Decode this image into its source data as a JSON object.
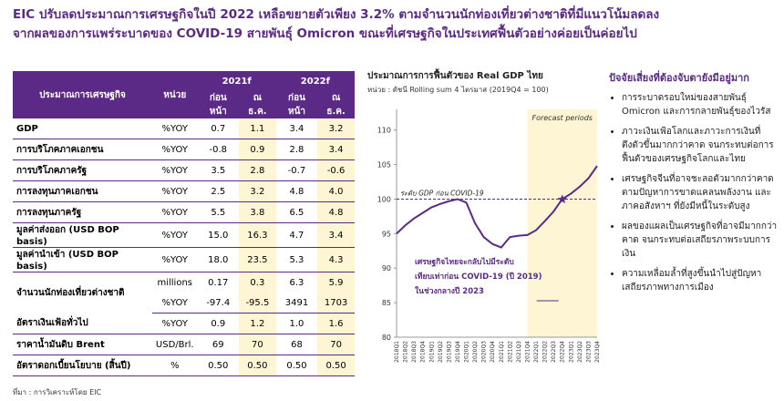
{
  "header": {
    "title_lines": [
      "EIC ปรับลดประมาณการเศรษฐกิจในปี 2022 เหลือขยายตัวเพียง 3.2% ตามจำนวนนักท่องเที่ยวต่างชาติที่มีแนวโน้มลดลง",
      "จากผลของการแพร่ระบาดของ COVID-19 สายพันธุ์ Omicron ขณะที่เศรษฐกิจในประเทศฟื้นตัวอย่างค่อยเป็นค่อยไป"
    ]
  },
  "table": {
    "head": [
      "ประมาณการเศรษฐกิจ",
      "หน่วย",
      "2021f",
      "2022f"
    ],
    "subhead": [
      "ก่อนหน้า",
      "ณ ธ.ค.",
      "ก่อนหน้า",
      "ณ ธ.ค."
    ],
    "rows": [
      [
        "GDP",
        "%YOY",
        "0.7",
        "1.1",
        "3.4",
        "3.2"
      ],
      [
        "การบริโภคภาคเอกชน",
        "%YOY",
        "-0.8",
        "0.9",
        "2.8",
        "3.4"
      ],
      [
        "การบริโภคภาครัฐ",
        "%YOY",
        "3.5",
        "2.8",
        "-0.7",
        "-0.6"
      ],
      [
        "การลงทุนภาคเอกชน",
        "%YOY",
        "2.5",
        "3.2",
        "4.8",
        "4.0"
      ],
      [
        "การลงทุนภาครัฐ",
        "%YOY",
        "5.5",
        "3.8",
        "6.5",
        "4.8"
      ],
      [
        "มูลค่าส่งออก (USD BOP basis)",
        "%YOY",
        "15.0",
        "16.3",
        "4.7",
        "3.4"
      ],
      [
        "มูลค่านำเข้า (USD BOP basis)",
        "%YOY",
        "18.0",
        "23.5",
        "5.3",
        "4.3"
      ],
      [
        "จำนวนนักท่องเที่ยวต่างชาติ",
        "millions",
        "0.17",
        "0.3",
        "6.3",
        "5.9"
      ],
      [
        "%YOY",
        "-97.4",
        "-95.5",
        "3491",
        "1703"
      ],
      [
        "อัตราเงินเฟ้อทั่วไป",
        "%YOY",
        "0.9",
        "1.2",
        "1.0",
        "1.6"
      ],
      [
        "ราคาน้ำมันดิบ Brent",
        "USD/Brl.",
        "69",
        "70",
        "68",
        "70"
      ],
      [
        "อัตราดอกเบี้ยนโยบาย (สิ้นปี)",
        "%",
        "0.50",
        "0.50",
        "0.50",
        "0.50"
      ]
    ],
    "source": "ที่มา : การวิเคราะห์โดย EIC"
  },
  "chart_data": {
    "type": "line",
    "title": "ประมาณการการฟื้นตัวของ Real GDP ไทย",
    "subtitle": "หน่วย : ดัชนี Rolling sum 4 ไตรมาส (2019Q4 = 100)",
    "categories": [
      "2018Q1",
      "2018Q2",
      "2018Q3",
      "2018Q4",
      "2019Q1",
      "2019Q2",
      "2019Q3",
      "2019Q4",
      "2020Q1",
      "2020Q2",
      "2020Q3",
      "2020Q4",
      "2021Q1",
      "2021Q2",
      "2021Q3",
      "2021Q4",
      "2022Q1",
      "2022Q2",
      "2022Q3",
      "2022Q4",
      "2023Q1",
      "2023Q2",
      "2023Q3",
      "2023Q4"
    ],
    "series": [
      {
        "name": "Real GDP",
        "color": "#5b2a86",
        "values": [
          95,
          96.2,
          97.2,
          98,
          98.8,
          99.3,
          99.7,
          100,
          99.5,
          96.5,
          94.5,
          93.5,
          93,
          94.5,
          94.7,
          94.8,
          95.5,
          96.8,
          98.2,
          100,
          100.8,
          101.8,
          103,
          104.8
        ]
      }
    ],
    "ylim": [
      80,
      113
    ],
    "yticks": [
      80,
      85,
      90,
      95,
      100,
      105,
      110
    ],
    "forecast_start": "2021Q4",
    "forecast_label": "Forecast periods",
    "reference_line": {
      "value": 100,
      "label": "ระดับ GDP ก่อน COVID-19"
    },
    "annotation": [
      "เศรษฐกิจไทยจะกลับไปมีระดับ",
      "เทียบเท่าก่อน COVID-19 (ปี 2019)",
      "ในช่วงกลางปี 2023"
    ]
  },
  "risks": {
    "title": "ปัจจัยเสี่ยงที่ต้องจับตายังมีอยู่มาก",
    "items": [
      "การระบาดรอบใหม่ของสายพันธุ์ Omicron และการกลายพันธุ์ของไวรัส",
      "ภาวะเงินเฟ้อโลกและภาวะการเงินที่ตึงตัวขึ้นมากกว่าคาด จนกระทบต่อการฟื้นตัวของเศรษฐกิจโลกและไทย",
      "เศรษฐกิจจีนที่อาจชะลอตัวมากกว่าคาด ตามปัญหาการขาดแคลนพลังงาน และภาคอสังหาฯ ที่ยังมีหนี้ในระดับสูง",
      "ผลของแผลเป็นเศรษฐกิจที่อาจมีมากกว่าคาด จนกระทบต่อเสถียรภาพระบบการเงิน",
      "ความเหลื่อมล้ำที่สูงขึ้นนำไปสู่ปัญหาเสถียรภาพทางการเมือง"
    ]
  }
}
